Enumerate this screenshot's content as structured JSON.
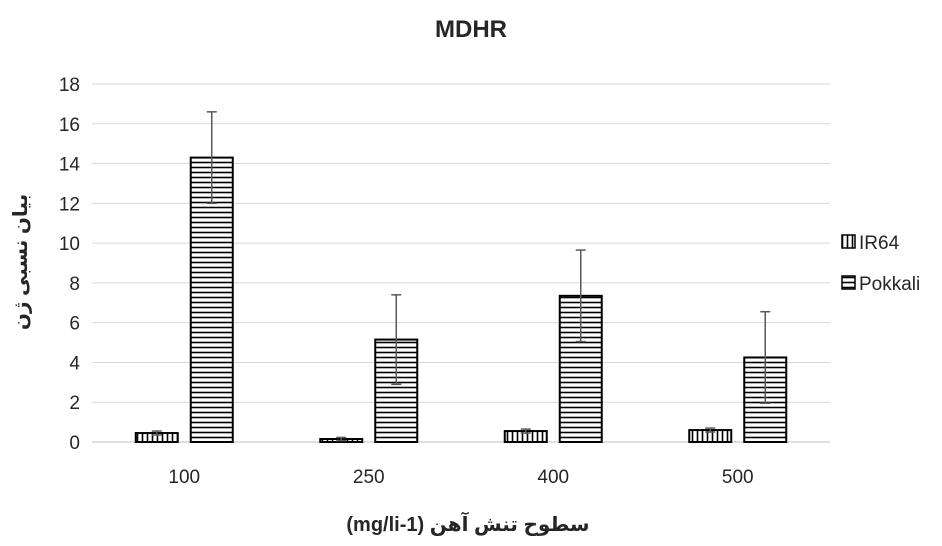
{
  "chart_data": {
    "type": "bar",
    "title": "MDHR",
    "xlabel": "سطوح تنش آهن (mg/li-1)",
    "ylabel": "بیان نسبی ژن",
    "categories": [
      "100",
      "250",
      "400",
      "500"
    ],
    "ylim": [
      0,
      18
    ],
    "yticks": [
      0,
      2,
      4,
      6,
      8,
      10,
      12,
      14,
      16,
      18
    ],
    "grid": true,
    "legend_position": "right",
    "series": [
      {
        "name": "IR64",
        "values": [
          0.45,
          0.15,
          0.55,
          0.6
        ],
        "errors": [
          0.1,
          0.08,
          0.1,
          0.1
        ],
        "pattern": "vertical-lines"
      },
      {
        "name": "Pokkali",
        "values": [
          14.3,
          5.15,
          7.35,
          4.25
        ],
        "errors": [
          2.3,
          2.25,
          2.3,
          2.3
        ],
        "pattern": "horizontal-lines"
      }
    ],
    "colors": {
      "bar_stroke": "#000000",
      "grid": "#d9d9d9",
      "axis": "#bfbfbf",
      "error_bar": "#595959",
      "text": "#262626"
    }
  }
}
